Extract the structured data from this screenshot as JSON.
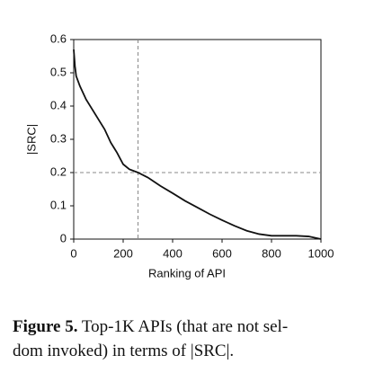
{
  "chart_data": {
    "type": "line",
    "xlabel": "Ranking of API",
    "ylabel": "|SRC|",
    "x": [
      0,
      5,
      10,
      25,
      50,
      75,
      100,
      125,
      150,
      175,
      200,
      225,
      260,
      300,
      350,
      400,
      450,
      500,
      550,
      600,
      650,
      700,
      750,
      800,
      900,
      950,
      1000
    ],
    "series": [
      {
        "color": "#111111",
        "values": [
          0.57,
          0.52,
          0.49,
          0.46,
          0.42,
          0.39,
          0.36,
          0.33,
          0.29,
          0.26,
          0.225,
          0.21,
          0.2,
          0.185,
          0.16,
          0.138,
          0.115,
          0.095,
          0.075,
          0.057,
          0.04,
          0.025,
          0.015,
          0.01,
          0.01,
          0.008,
          0
        ]
      }
    ],
    "xlim": [
      0,
      1000
    ],
    "xticks": [
      0,
      200,
      400,
      600,
      800,
      1000
    ],
    "ylim": [
      0,
      0.6
    ],
    "yticks": [
      0,
      0.1,
      0.2,
      0.3,
      0.4,
      0.5,
      0.6
    ],
    "reference_lines": {
      "x": 260,
      "y": 0.2
    }
  },
  "caption": {
    "label": "Figure 5.",
    "lines": [
      "Top-1K APIs (that are not sel-",
      "dom invoked) in terms of |SRC|."
    ]
  }
}
